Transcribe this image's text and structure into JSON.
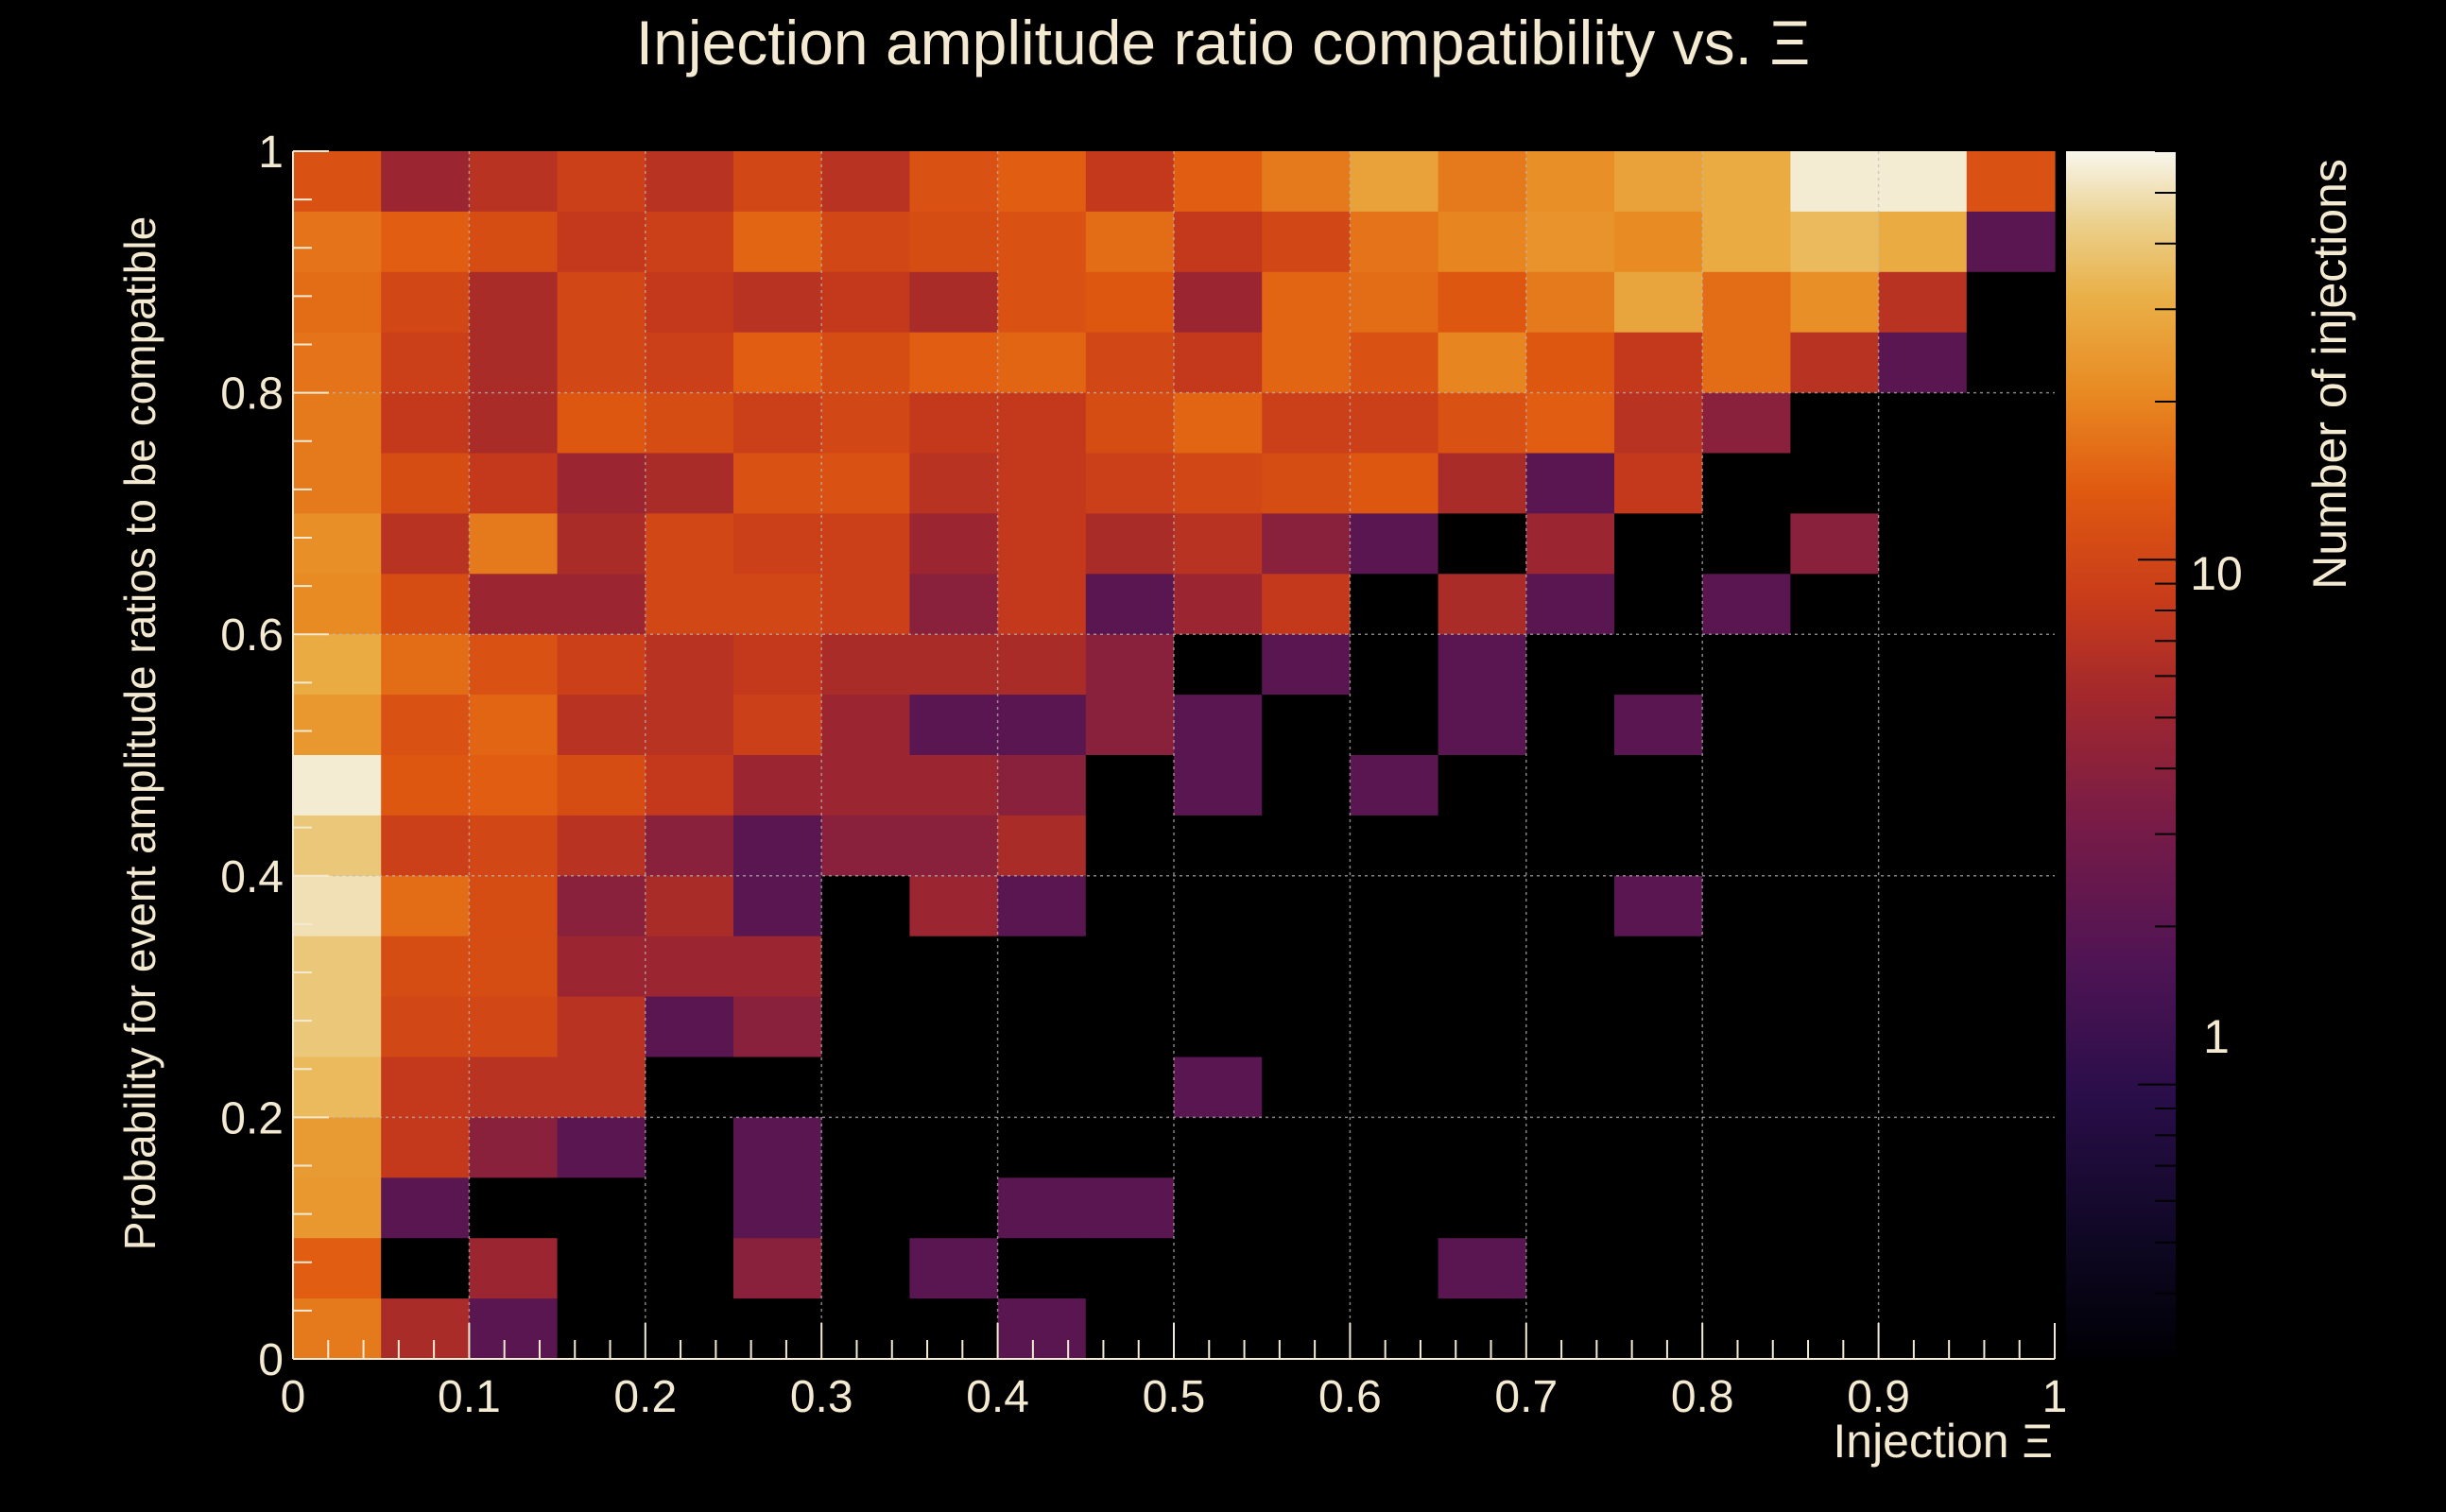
{
  "chart_data": {
    "type": "heatmap",
    "title": "Injection amplitude ratio compatibility vs.  Ξ",
    "xlabel": "Injection Ξ",
    "ylabel": "Probability for event amplitude ratios to be compatible",
    "zlabel": "Number of injections",
    "xlim": [
      0,
      1
    ],
    "ylim": [
      0,
      1
    ],
    "x_ticks": [
      "0",
      "0.1",
      "0.2",
      "0.3",
      "0.4",
      "0.5",
      "0.6",
      "0.7",
      "0.8",
      "0.9",
      "1"
    ],
    "y_ticks": [
      "0",
      "0.2",
      "0.4",
      "0.6",
      "0.8",
      "1"
    ],
    "z_ticks": [
      "1",
      "10"
    ],
    "z_scale": "log",
    "zlim": [
      0.3,
      60
    ],
    "grid": true,
    "x_bins": 20,
    "y_bins": 20,
    "row_order": "top-to-bottom (row 0 is y 0.95-1.0)",
    "counts": [
      [
        12,
        5,
        7,
        9,
        7,
        10,
        7,
        12,
        14,
        8,
        14,
        18,
        27,
        18,
        22,
        27,
        30,
        55,
        55,
        12
      ],
      [
        17,
        14,
        11,
        8,
        9,
        15,
        10,
        11,
        12,
        16,
        8,
        10,
        17,
        20,
        23,
        21,
        30,
        35,
        30,
        2
      ],
      [
        16,
        10,
        6,
        10,
        8,
        7,
        8,
        6,
        12,
        13,
        5,
        15,
        16,
        13,
        18,
        28,
        16,
        22,
        7,
        0
      ],
      [
        17,
        9,
        6,
        10,
        9,
        14,
        11,
        14,
        15,
        10,
        8,
        15,
        12,
        20,
        13,
        8,
        16,
        7,
        2,
        0
      ],
      [
        18,
        8,
        6,
        13,
        11,
        9,
        10,
        8,
        8,
        11,
        15,
        9,
        9,
        12,
        14,
        7,
        4,
        0,
        0,
        0
      ],
      [
        18,
        11,
        8,
        5,
        6,
        12,
        12,
        7,
        8,
        9,
        10,
        11,
        13,
        6,
        2,
        8,
        0,
        0,
        0,
        0
      ],
      [
        22,
        7,
        18,
        6,
        10,
        9,
        9,
        5,
        8,
        6,
        7,
        4,
        2,
        0,
        5,
        0,
        0,
        4,
        0,
        0
      ],
      [
        21,
        11,
        5,
        5,
        10,
        10,
        9,
        4,
        8,
        2,
        5,
        8,
        0,
        6,
        2,
        0,
        2,
        0,
        0,
        0
      ],
      [
        30,
        16,
        12,
        9,
        7,
        8,
        6,
        6,
        6,
        4,
        0,
        2,
        0,
        2,
        0,
        0,
        0,
        0,
        0,
        0
      ],
      [
        24,
        12,
        15,
        7,
        7,
        9,
        5,
        2,
        2,
        4,
        2,
        0,
        0,
        2,
        0,
        2,
        0,
        0,
        0,
        0
      ],
      [
        55,
        13,
        14,
        11,
        8,
        5,
        5,
        5,
        4,
        0,
        2,
        0,
        2,
        0,
        0,
        0,
        0,
        0,
        0,
        0
      ],
      [
        40,
        9,
        10,
        7,
        4,
        2,
        4,
        4,
        6,
        0,
        0,
        0,
        0,
        0,
        0,
        0,
        0,
        0,
        0,
        0
      ],
      [
        50,
        16,
        11,
        4,
        6,
        2,
        0,
        5,
        2,
        0,
        0,
        0,
        0,
        0,
        0,
        2,
        0,
        0,
        0,
        0
      ],
      [
        40,
        11,
        11,
        5,
        5,
        5,
        0,
        0,
        0,
        0,
        0,
        0,
        0,
        0,
        0,
        0,
        0,
        0,
        0,
        0
      ],
      [
        40,
        10,
        10,
        7,
        2,
        4,
        0,
        0,
        0,
        0,
        0,
        0,
        0,
        0,
        0,
        0,
        0,
        0,
        0,
        0
      ],
      [
        35,
        8,
        7,
        7,
        0,
        0,
        0,
        0,
        0,
        0,
        2,
        0,
        0,
        0,
        0,
        0,
        0,
        0,
        0,
        0
      ],
      [
        25,
        8,
        4,
        2,
        0,
        2,
        0,
        0,
        0,
        0,
        0,
        0,
        0,
        0,
        0,
        0,
        0,
        0,
        0,
        0
      ],
      [
        24,
        2,
        0,
        0,
        0,
        2,
        0,
        0,
        2,
        2,
        0,
        0,
        0,
        0,
        0,
        0,
        0,
        0,
        0,
        0
      ],
      [
        14,
        0,
        5,
        0,
        0,
        4,
        0,
        2,
        0,
        0,
        0,
        0,
        0,
        2,
        0,
        0,
        0,
        0,
        0,
        0
      ],
      [
        18,
        6,
        2,
        0,
        0,
        0,
        0,
        0,
        2,
        0,
        0,
        0,
        0,
        0,
        0,
        0,
        0,
        0,
        0,
        0
      ]
    ]
  }
}
